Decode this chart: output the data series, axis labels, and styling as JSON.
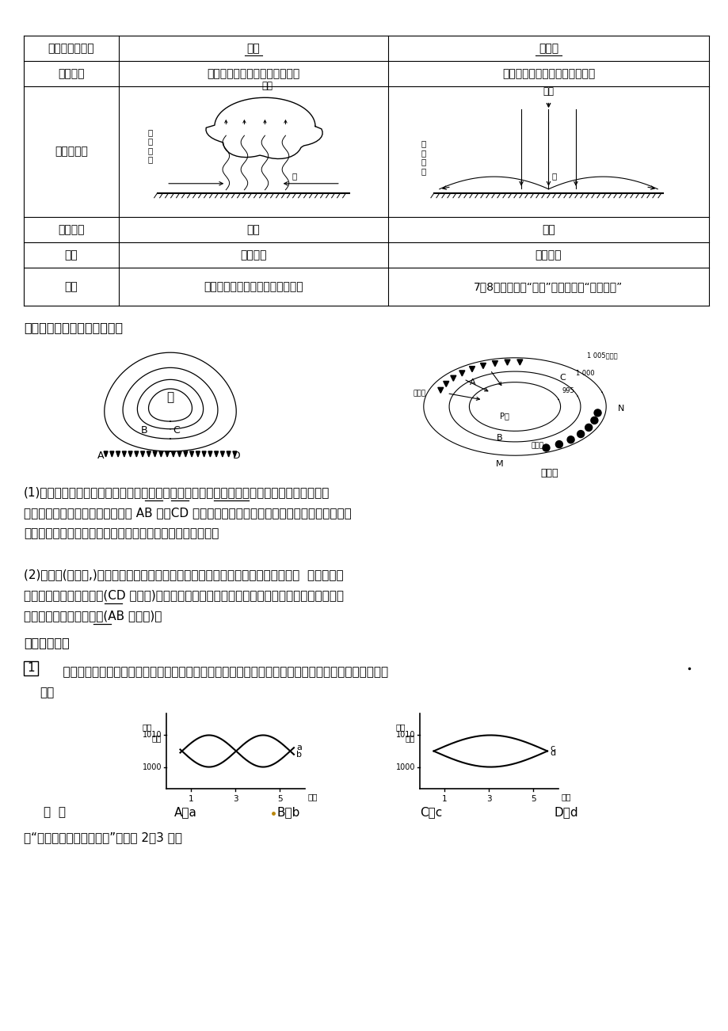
{
  "bg_color": "#ffffff",
  "section3_title": "三、锋面气旋（北半球为例）",
  "para1": "(1)形成：在中高纬地区，一般锋面和气旋（低压）联系在一起，形成锋面气旋。气旋的水平气",
  "para1b": "流是向中心辐合。在槽线，如图中 AB 线、CD 线，两侧冷暖气流易相遇形成锋面。而反气旋的气",
  "para1c": "流呈辐散状，在脊线两侧气流不可能相遇，故不能形成锋面。",
  "para2": "(2)结构：(如右图,)气旋东部偏南风来自较低的纬度，气温较高，当它向北移动时，  遇到较高纬",
  "para2b": "度的冷空气就形成了暖锋(CD 线附近)。而西部气流是来自北方高纬度的偏北风，南下时会遇到低",
  "para2c": "纬度的暖空气而形成冷锋(AB 线附近)。",
  "detection_title": "「当堂检测」",
  "q1_num": "1",
  "q1_text1": "    以下是不同天气系统过境前后的气压变化示意图，图中的四条曲线中，表示冷锋过境前后的气压变化曲",
  "q1_text2": "线是",
  "choices_left": "（  ）",
  "choices_a": "A、a",
  "choices_b": "B、b",
  "choices_c": "C、c",
  "choices_d": "D、d",
  "q2_text": "读“北半球天气系统示意图”，完成 2～3 题。",
  "table_row0": [
    "就气流状况而言",
    "气旋",
    "反气旋"
  ],
  "table_row1": [
    "水平气流",
    "由四周向中心辐合（北逆南顺）",
    "由中心向四周辐散（北顺南逆）"
  ],
  "table_row2": [
    "垂直剪面图",
    "",
    ""
  ],
  "table_row3": [
    "垂直气流",
    "上升",
    "下沉"
  ],
  "table_row4": [
    "天气",
    "阴雨天气",
    "晴朗天气"
  ],
  "table_row5": [
    "实例",
    "夏秋季节影响我国东南沿海的台风",
    "7、8月长江流域“伏旱”；北方秋季“秋高气爽”"
  ]
}
